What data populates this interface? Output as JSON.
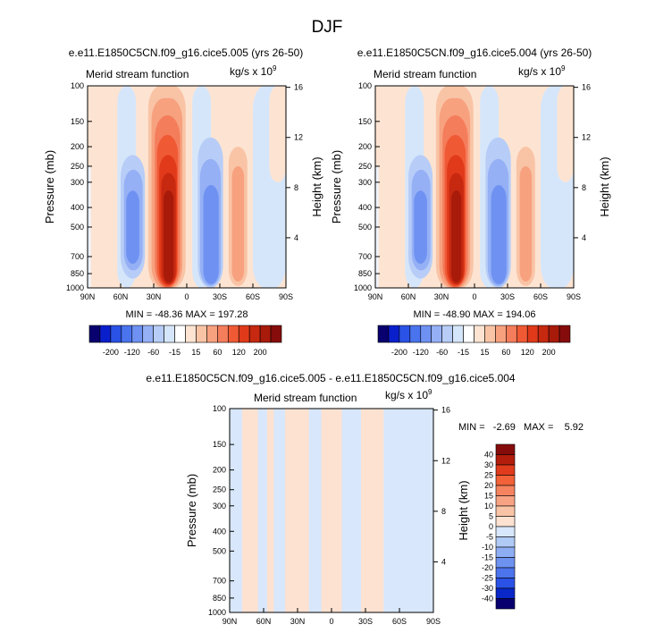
{
  "figure": {
    "title": "DJF",
    "panels": [
      {
        "id": "left",
        "case_title": "e.e11.E1850C5CN.f09_g16.cice5.005 (yrs 26-50)",
        "var_label": "Merid stream function",
        "units_prefix": "kg/s x 10",
        "units_exp": "9",
        "y_left_label": "Pressure (mb)",
        "y_right_label": "Height (km)",
        "min_max": "MIN = -48.36   MAX = 197.28"
      },
      {
        "id": "right",
        "case_title": "e.e11.E1850C5CN.f09_g16.cice5.004 (yrs 26-50)",
        "var_label": "Merid stream function",
        "units_prefix": "kg/s x 10",
        "units_exp": "9",
        "y_left_label": "Pressure (mb)",
        "y_right_label": "Height (km)",
        "min_max": "MIN = -48.90   MAX = 194.06"
      },
      {
        "id": "diff",
        "case_title": "e.e11.E1850C5CN.f09_g16.cice5.005 - e.e11.E1850C5CN.f09_g16.cice5.004",
        "var_label": "Merid stream function",
        "units_prefix": "kg/s x 10",
        "units_exp": "9",
        "y_left_label": "Pressure (mb)",
        "y_right_label": "Height (km)",
        "min_max": "MIN =   -2.69   MAX =    5.92"
      }
    ]
  },
  "chart_data": {
    "type": "heatmap",
    "x_ticks": [
      "90N",
      "60N",
      "30N",
      "0",
      "30S",
      "60S",
      "90S"
    ],
    "x_lat_range": [
      90,
      -90
    ],
    "pressure_ticks": [
      100,
      150,
      200,
      250,
      300,
      400,
      500,
      700,
      850,
      1000
    ],
    "pressure_range": [
      100,
      1000
    ],
    "height_ticks_km": [
      4,
      8,
      12,
      16
    ],
    "main_colorbar": {
      "labels": [
        "-200",
        "-120",
        "-60",
        "-15",
        "15",
        "60",
        "120",
        "200"
      ],
      "colors": [
        "#08006e",
        "#0a1fcc",
        "#2a52e6",
        "#4a74ee",
        "#6f92f2",
        "#95b0f5",
        "#b7cdf7",
        "#d6e6fa",
        "#ffffff",
        "#fde4d2",
        "#f9c4a6",
        "#f7a17f",
        "#f47d5c",
        "#ef5a35",
        "#e03a1a",
        "#c62810",
        "#a81a0a",
        "#860c0c"
      ]
    },
    "diff_colorbar": {
      "labels": [
        "40",
        "30",
        "25",
        "20",
        "15",
        "10",
        "5",
        "0",
        "-5",
        "-10",
        "-15",
        "-20",
        "-25",
        "-30",
        "-40"
      ],
      "colors": [
        "#860c0c",
        "#b21d0c",
        "#df3b1c",
        "#f26137",
        "#f5835f",
        "#f7a383",
        "#f9c4a6",
        "#fde2d1",
        "#d8e7fb",
        "#b0caf6",
        "#8eaef4",
        "#6d92f0",
        "#4c74ec",
        "#2a52e6",
        "#0a28c8",
        "#08006e"
      ]
    },
    "main_fields": [
      {
        "panel": "left",
        "background": "#fde4d2",
        "cells": [
          {
            "lat_from": 90,
            "lat_to": 87,
            "p_top": 250,
            "p_bot": 1000,
            "color": "#eef3fb"
          },
          {
            "lat_from": 63,
            "lat_to": 46,
            "p_top": 100,
            "p_bot": 1000,
            "color": "#d6e6fa"
          },
          {
            "lat_from": 60,
            "lat_to": 38,
            "p_top": 220,
            "p_bot": 900,
            "color": "#b7cdf7"
          },
          {
            "lat_from": 57,
            "lat_to": 40,
            "p_top": 260,
            "p_bot": 820,
            "color": "#95b0f5"
          },
          {
            "lat_from": 55,
            "lat_to": 43,
            "p_top": 330,
            "p_bot": 760,
            "color": "#6f92f2"
          },
          {
            "lat_from": 35,
            "lat_to": 1,
            "p_top": 100,
            "p_bot": 1000,
            "color": "#f9c4a6"
          },
          {
            "lat_from": 32,
            "lat_to": 4,
            "p_top": 115,
            "p_bot": 1000,
            "color": "#f7a17f"
          },
          {
            "lat_from": 29,
            "lat_to": 6,
            "p_top": 140,
            "p_bot": 1000,
            "color": "#f47d5c"
          },
          {
            "lat_from": 27,
            "lat_to": 8,
            "p_top": 175,
            "p_bot": 990,
            "color": "#ef5a35"
          },
          {
            "lat_from": 25,
            "lat_to": 9,
            "p_top": 220,
            "p_bot": 975,
            "color": "#e03a1a"
          },
          {
            "lat_from": 23,
            "lat_to": 10,
            "p_top": 270,
            "p_bot": 960,
            "color": "#c62810"
          },
          {
            "lat_from": 21,
            "lat_to": 12,
            "p_top": 330,
            "p_bot": 940,
            "color": "#a81a0a"
          },
          {
            "lat_from": -5,
            "lat_to": -22,
            "p_top": 100,
            "p_bot": 1000,
            "color": "#d6e6fa"
          },
          {
            "lat_from": -10,
            "lat_to": -33,
            "p_top": 180,
            "p_bot": 1000,
            "color": "#b7cdf7"
          },
          {
            "lat_from": -12,
            "lat_to": -31,
            "p_top": 230,
            "p_bot": 980,
            "color": "#95b0f5"
          },
          {
            "lat_from": -15,
            "lat_to": -29,
            "p_top": 310,
            "p_bot": 960,
            "color": "#6f92f2"
          },
          {
            "lat_from": -38,
            "lat_to": -55,
            "p_top": 200,
            "p_bot": 980,
            "color": "#f9c4a6"
          },
          {
            "lat_from": -41,
            "lat_to": -52,
            "p_top": 250,
            "p_bot": 930,
            "color": "#f7a17f"
          },
          {
            "lat_from": -60,
            "lat_to": -90,
            "p_top": 100,
            "p_bot": 1000,
            "color": "#d6e6fa"
          },
          {
            "lat_from": -75,
            "lat_to": -90,
            "p_top": 100,
            "p_bot": 300,
            "color": "#fde4d2"
          }
        ]
      },
      {
        "panel": "right",
        "background": "#fde4d2",
        "cells": [
          {
            "lat_from": 90,
            "lat_to": 87,
            "p_top": 250,
            "p_bot": 1000,
            "color": "#eef3fb"
          },
          {
            "lat_from": 63,
            "lat_to": 46,
            "p_top": 100,
            "p_bot": 1000,
            "color": "#d6e6fa"
          },
          {
            "lat_from": 60,
            "lat_to": 38,
            "p_top": 220,
            "p_bot": 900,
            "color": "#b7cdf7"
          },
          {
            "lat_from": 57,
            "lat_to": 40,
            "p_top": 260,
            "p_bot": 820,
            "color": "#95b0f5"
          },
          {
            "lat_from": 55,
            "lat_to": 43,
            "p_top": 330,
            "p_bot": 760,
            "color": "#6f92f2"
          },
          {
            "lat_from": 35,
            "lat_to": 1,
            "p_top": 100,
            "p_bot": 1000,
            "color": "#f9c4a6"
          },
          {
            "lat_from": 32,
            "lat_to": 4,
            "p_top": 115,
            "p_bot": 1000,
            "color": "#f7a17f"
          },
          {
            "lat_from": 29,
            "lat_to": 6,
            "p_top": 140,
            "p_bot": 1000,
            "color": "#f47d5c"
          },
          {
            "lat_from": 27,
            "lat_to": 8,
            "p_top": 175,
            "p_bot": 990,
            "color": "#ef5a35"
          },
          {
            "lat_from": 25,
            "lat_to": 9,
            "p_top": 220,
            "p_bot": 975,
            "color": "#e03a1a"
          },
          {
            "lat_from": 23,
            "lat_to": 10,
            "p_top": 270,
            "p_bot": 960,
            "color": "#c62810"
          },
          {
            "lat_from": 21,
            "lat_to": 12,
            "p_top": 330,
            "p_bot": 940,
            "color": "#a81a0a"
          },
          {
            "lat_from": -5,
            "lat_to": -22,
            "p_top": 100,
            "p_bot": 1000,
            "color": "#d6e6fa"
          },
          {
            "lat_from": -10,
            "lat_to": -33,
            "p_top": 180,
            "p_bot": 1000,
            "color": "#b7cdf7"
          },
          {
            "lat_from": -12,
            "lat_to": -31,
            "p_top": 230,
            "p_bot": 980,
            "color": "#95b0f5"
          },
          {
            "lat_from": -15,
            "lat_to": -29,
            "p_top": 310,
            "p_bot": 960,
            "color": "#6f92f2"
          },
          {
            "lat_from": -38,
            "lat_to": -55,
            "p_top": 200,
            "p_bot": 980,
            "color": "#f9c4a6"
          },
          {
            "lat_from": -41,
            "lat_to": -52,
            "p_top": 250,
            "p_bot": 930,
            "color": "#f7a17f"
          },
          {
            "lat_from": -60,
            "lat_to": -90,
            "p_top": 100,
            "p_bot": 1000,
            "color": "#d6e6fa"
          },
          {
            "lat_from": -75,
            "lat_to": -90,
            "p_top": 100,
            "p_bot": 300,
            "color": "#fde4d2"
          }
        ]
      }
    ],
    "diff_field": {
      "background": "#fde2d1",
      "bands": [
        {
          "lat_from": 90,
          "lat_to": 79,
          "color": "#d8e7fb"
        },
        {
          "lat_from": 65,
          "lat_to": 57,
          "color": "#d8e7fb"
        },
        {
          "lat_from": 51,
          "lat_to": 41,
          "color": "#d8e7fb"
        },
        {
          "lat_from": 20,
          "lat_to": 9,
          "color": "#d8e7fb"
        },
        {
          "lat_from": -9,
          "lat_to": -26,
          "color": "#d8e7fb"
        },
        {
          "lat_from": -46,
          "lat_to": -90,
          "color": "#d8e7fb"
        }
      ]
    }
  }
}
